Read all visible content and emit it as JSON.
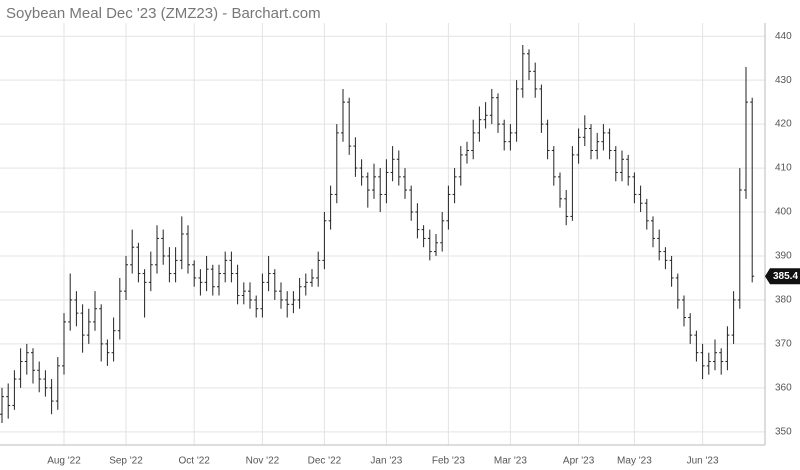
{
  "chart_data": {
    "type": "ohlc",
    "title": "Soybean Meal Dec '23 (ZMZ23) - Barchart.com",
    "color": "#222222",
    "grid": true,
    "ylim": [
      347,
      443
    ],
    "yticks": [
      350,
      360,
      370,
      380,
      390,
      400,
      410,
      420,
      430,
      440
    ],
    "categories": [
      null,
      null,
      null,
      null,
      null,
      null,
      null,
      null,
      null,
      null,
      "Aug '22",
      null,
      null,
      null,
      null,
      null,
      null,
      null,
      null,
      null,
      "Sep '22",
      null,
      null,
      null,
      null,
      null,
      null,
      null,
      null,
      null,
      null,
      "Oct '22",
      null,
      null,
      null,
      null,
      null,
      null,
      null,
      null,
      null,
      null,
      "Nov '22",
      null,
      null,
      null,
      null,
      null,
      null,
      null,
      null,
      null,
      "Dec '22",
      null,
      null,
      null,
      null,
      null,
      null,
      null,
      null,
      null,
      "Jan '23",
      null,
      null,
      null,
      null,
      null,
      null,
      null,
      null,
      null,
      "Feb '23",
      null,
      null,
      null,
      null,
      null,
      null,
      null,
      null,
      null,
      "Mar '23",
      null,
      null,
      null,
      null,
      null,
      null,
      null,
      null,
      null,
      null,
      "Apr '23",
      null,
      null,
      null,
      null,
      null,
      null,
      null,
      null,
      "May '23",
      null,
      null,
      null,
      null,
      null,
      null,
      null,
      null,
      null,
      null,
      "Jun '23",
      null,
      null,
      null,
      null,
      null,
      null,
      null,
      null
    ],
    "values": [
      [
        354,
        360,
        352,
        358
      ],
      [
        358,
        361,
        353,
        356
      ],
      [
        356,
        364,
        355,
        362
      ],
      [
        362,
        369,
        360,
        366
      ],
      [
        366,
        370,
        363,
        368
      ],
      [
        368,
        369,
        361,
        364
      ],
      [
        364,
        366,
        359,
        362
      ],
      [
        362,
        364,
        358,
        360
      ],
      [
        360,
        362,
        354,
        357
      ],
      [
        357,
        367,
        355,
        365
      ],
      [
        365,
        377,
        363,
        375
      ],
      [
        375,
        386,
        373,
        380
      ],
      [
        380,
        382,
        374,
        377
      ],
      [
        377,
        379,
        368,
        372
      ],
      [
        372,
        378,
        370,
        375
      ],
      [
        375,
        382,
        373,
        378
      ],
      [
        378,
        379,
        366,
        370
      ],
      [
        370,
        371,
        365,
        368
      ],
      [
        368,
        376,
        366,
        373
      ],
      [
        373,
        385,
        371,
        382
      ],
      [
        382,
        390,
        380,
        388
      ],
      [
        388,
        396,
        386,
        392
      ],
      [
        392,
        393,
        384,
        386
      ],
      [
        386,
        387,
        376,
        384
      ],
      [
        384,
        391,
        382,
        388
      ],
      [
        388,
        397,
        386,
        394
      ],
      [
        394,
        396,
        388,
        390
      ],
      [
        390,
        392,
        384,
        386
      ],
      [
        386,
        392,
        384,
        389
      ],
      [
        389,
        399,
        387,
        395
      ],
      [
        395,
        397,
        386,
        388
      ],
      [
        388,
        389,
        383,
        385
      ],
      [
        385,
        387,
        381,
        384
      ],
      [
        384,
        390,
        382,
        387
      ],
      [
        387,
        388,
        381,
        383
      ],
      [
        383,
        388,
        381,
        386
      ],
      [
        386,
        391,
        384,
        389
      ],
      [
        389,
        391,
        384,
        386
      ],
      [
        386,
        388,
        379,
        381
      ],
      [
        381,
        384,
        379,
        382
      ],
      [
        382,
        384,
        378,
        380
      ],
      [
        380,
        381,
        376,
        378
      ],
      [
        378,
        386,
        376,
        384
      ],
      [
        384,
        390,
        382,
        386
      ],
      [
        386,
        387,
        380,
        382
      ],
      [
        382,
        384,
        378,
        380
      ],
      [
        380,
        382,
        376,
        379
      ],
      [
        379,
        382,
        377,
        380
      ],
      [
        380,
        385,
        378,
        383
      ],
      [
        383,
        386,
        381,
        384
      ],
      [
        384,
        387,
        383,
        385
      ],
      [
        385,
        391,
        383,
        389
      ],
      [
        389,
        400,
        387,
        398
      ],
      [
        398,
        406,
        396,
        404
      ],
      [
        404,
        420,
        402,
        418
      ],
      [
        418,
        428,
        416,
        425
      ],
      [
        425,
        426,
        413,
        415
      ],
      [
        415,
        417,
        408,
        410
      ],
      [
        410,
        412,
        406,
        408
      ],
      [
        408,
        409,
        401,
        405
      ],
      [
        405,
        411,
        403,
        408
      ],
      [
        408,
        410,
        400,
        404
      ],
      [
        404,
        412,
        402,
        409
      ],
      [
        409,
        415,
        407,
        412
      ],
      [
        412,
        414,
        406,
        408
      ],
      [
        408,
        410,
        403,
        405
      ],
      [
        405,
        406,
        398,
        400
      ],
      [
        400,
        402,
        394,
        396
      ],
      [
        396,
        397,
        392,
        394
      ],
      [
        394,
        396,
        389,
        391
      ],
      [
        391,
        395,
        390,
        393
      ],
      [
        393,
        400,
        391,
        398
      ],
      [
        398,
        406,
        396,
        404
      ],
      [
        404,
        410,
        402,
        408
      ],
      [
        408,
        415,
        406,
        413
      ],
      [
        413,
        416,
        411,
        414
      ],
      [
        414,
        421,
        412,
        418
      ],
      [
        418,
        424,
        416,
        421
      ],
      [
        421,
        425,
        419,
        422
      ],
      [
        422,
        428,
        420,
        426
      ],
      [
        426,
        427,
        418,
        420
      ],
      [
        420,
        421,
        414,
        416
      ],
      [
        416,
        420,
        414,
        418
      ],
      [
        418,
        430,
        416,
        428
      ],
      [
        428,
        438,
        426,
        436
      ],
      [
        436,
        437,
        430,
        432
      ],
      [
        432,
        434,
        426,
        428
      ],
      [
        428,
        429,
        418,
        420
      ],
      [
        420,
        421,
        412,
        414
      ],
      [
        414,
        415,
        406,
        408
      ],
      [
        408,
        409,
        401,
        403
      ],
      [
        403,
        405,
        397,
        399
      ],
      [
        399,
        415,
        398,
        413
      ],
      [
        413,
        419,
        411,
        417
      ],
      [
        417,
        422,
        415,
        419
      ],
      [
        419,
        420,
        412,
        414
      ],
      [
        414,
        418,
        412,
        416
      ],
      [
        416,
        420,
        414,
        418
      ],
      [
        418,
        419,
        412,
        414
      ],
      [
        414,
        415,
        407,
        409
      ],
      [
        409,
        414,
        407,
        412
      ],
      [
        412,
        413,
        406,
        408
      ],
      [
        408,
        409,
        402,
        404
      ],
      [
        404,
        406,
        400,
        402
      ],
      [
        402,
        403,
        396,
        398
      ],
      [
        398,
        399,
        392,
        394
      ],
      [
        394,
        396,
        389,
        391
      ],
      [
        391,
        392,
        387,
        389
      ],
      [
        389,
        390,
        383,
        385
      ],
      [
        385,
        386,
        378,
        380
      ],
      [
        380,
        381,
        374,
        376
      ],
      [
        376,
        377,
        370,
        372
      ],
      [
        372,
        373,
        366,
        368
      ],
      [
        368,
        370,
        362,
        365
      ],
      [
        365,
        368,
        363,
        366
      ],
      [
        366,
        371,
        364,
        368
      ],
      [
        368,
        369,
        363,
        366
      ],
      [
        366,
        374,
        364,
        372
      ],
      [
        372,
        382,
        370,
        380
      ],
      [
        380,
        410,
        378,
        405
      ],
      [
        405,
        433,
        403,
        425
      ],
      [
        425,
        426,
        384,
        385.4
      ]
    ]
  }
}
